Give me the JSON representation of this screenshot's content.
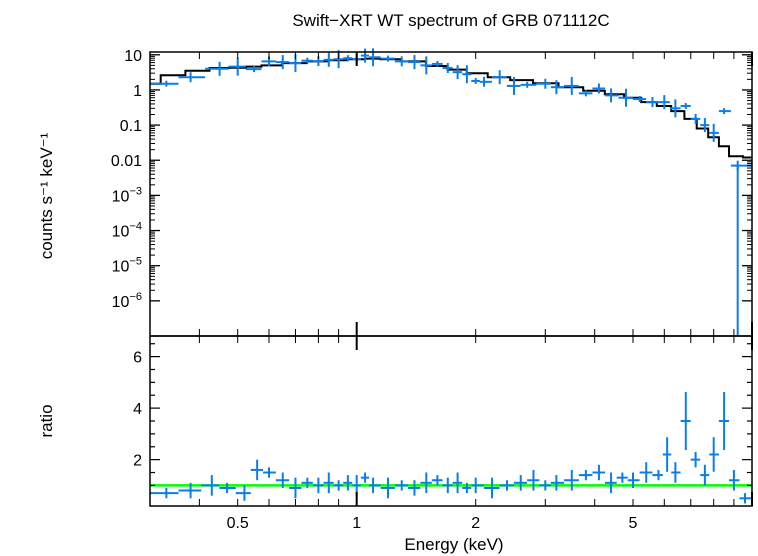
{
  "chart_data": [
    {
      "type": "scatter",
      "title": "Swift−XRT WT spectrum of GRB 071112C",
      "xlabel": "",
      "ylabel": "counts s⁻¹ keV⁻¹",
      "xscale": "log",
      "yscale": "log",
      "xlim": [
        0.3,
        10
      ],
      "ylim": [
        1e-07,
        12
      ],
      "y_ticks": [
        {
          "value": 10,
          "label": "10"
        },
        {
          "value": 1,
          "label": "1"
        },
        {
          "value": 0.1,
          "label": "0.1"
        },
        {
          "value": 0.01,
          "label": "0.01"
        },
        {
          "value": 0.001,
          "base": "10",
          "exp": "−3"
        },
        {
          "value": 0.0001,
          "base": "10",
          "exp": "−4"
        },
        {
          "value": 1e-05,
          "base": "10",
          "exp": "−5"
        },
        {
          "value": 1e-06,
          "base": "10",
          "exp": "−6"
        }
      ],
      "series": [
        {
          "kind": "data",
          "color": "#0a7ee8",
          "points": [
            [
              0.33,
              1.5
            ],
            [
              0.38,
              2.3
            ],
            [
              0.45,
              4.0
            ],
            [
              0.5,
              4.6
            ],
            [
              0.55,
              3.9
            ],
            [
              0.6,
              6.5
            ],
            [
              0.65,
              6.2
            ],
            [
              0.7,
              5.8
            ],
            [
              0.75,
              6.8
            ],
            [
              0.8,
              6.6
            ],
            [
              0.85,
              7.2
            ],
            [
              0.9,
              7.5
            ],
            [
              0.95,
              8.0
            ],
            [
              1.0,
              7.5
            ],
            [
              1.05,
              9.5
            ],
            [
              1.1,
              8.5
            ],
            [
              1.2,
              7.8
            ],
            [
              1.3,
              6.5
            ],
            [
              1.4,
              6.2
            ],
            [
              1.5,
              5.0
            ],
            [
              1.6,
              5.5
            ],
            [
              1.7,
              4.2
            ],
            [
              1.8,
              3.2
            ],
            [
              1.9,
              2.8
            ],
            [
              2.0,
              1.8
            ],
            [
              2.1,
              1.7
            ],
            [
              2.3,
              2.3
            ],
            [
              2.5,
              1.3
            ],
            [
              2.7,
              1.4
            ],
            [
              3.0,
              1.5
            ],
            [
              3.2,
              1.2
            ],
            [
              3.5,
              1.3
            ],
            [
              3.8,
              0.8
            ],
            [
              4.1,
              1.1
            ],
            [
              4.4,
              0.7
            ],
            [
              4.8,
              0.6
            ],
            [
              5.2,
              0.55
            ],
            [
              5.6,
              0.45
            ],
            [
              6.0,
              0.45
            ],
            [
              6.4,
              0.3
            ],
            [
              6.8,
              0.35
            ],
            [
              7.2,
              0.15
            ],
            [
              7.6,
              0.1
            ],
            [
              8.0,
              0.06
            ],
            [
              8.5,
              0.25
            ],
            [
              9.2,
              0.007
            ]
          ]
        },
        {
          "kind": "model",
          "color": "#000000",
          "points": [
            [
              0.3,
              1.5
            ],
            [
              0.34,
              2.6
            ],
            [
              0.4,
              3.5
            ],
            [
              0.45,
              4.2
            ],
            [
              0.5,
              4.3
            ],
            [
              0.55,
              4.6
            ],
            [
              0.6,
              5.0
            ],
            [
              0.7,
              5.8
            ],
            [
              0.8,
              6.5
            ],
            [
              0.9,
              7.0
            ],
            [
              1.0,
              7.5
            ],
            [
              1.1,
              7.8
            ],
            [
              1.2,
              7.5
            ],
            [
              1.4,
              6.5
            ],
            [
              1.6,
              4.8
            ],
            [
              1.8,
              3.8
            ],
            [
              2.0,
              3.0
            ],
            [
              2.3,
              2.3
            ],
            [
              2.6,
              1.9
            ],
            [
              3.0,
              1.55
            ],
            [
              3.5,
              1.2
            ],
            [
              4.0,
              0.95
            ],
            [
              4.5,
              0.75
            ],
            [
              5.0,
              0.6
            ],
            [
              5.5,
              0.45
            ],
            [
              6.0,
              0.35
            ],
            [
              6.5,
              0.25
            ],
            [
              7.0,
              0.15
            ],
            [
              7.5,
              0.08
            ],
            [
              8.0,
              0.045
            ],
            [
              8.5,
              0.025
            ],
            [
              9.0,
              0.013
            ],
            [
              10.0,
              0.012
            ]
          ]
        }
      ]
    },
    {
      "type": "scatter",
      "title": "",
      "xlabel": "Energy (keV)",
      "ylabel": "ratio",
      "xscale": "log",
      "xlim": [
        0.3,
        10
      ],
      "ylim": [
        0.2,
        6.8
      ],
      "x_ticks": [
        {
          "value": 0.5,
          "label": "0.5"
        },
        {
          "value": 1,
          "label": "1"
        },
        {
          "value": 2,
          "label": "2"
        },
        {
          "value": 5,
          "label": "5"
        }
      ],
      "y_ticks": [
        {
          "value": 2,
          "label": "2"
        },
        {
          "value": 4,
          "label": "4"
        },
        {
          "value": 6,
          "label": "6"
        }
      ],
      "reference_line": {
        "value": 1,
        "color": "#00ff00"
      },
      "series": [
        {
          "kind": "ratio",
          "color": "#0a7ee8",
          "points": [
            [
              0.33,
              0.7
            ],
            [
              0.38,
              0.8
            ],
            [
              0.43,
              1.0
            ],
            [
              0.47,
              0.9
            ],
            [
              0.52,
              0.7
            ],
            [
              0.56,
              1.6
            ],
            [
              0.6,
              1.5
            ],
            [
              0.65,
              1.2
            ],
            [
              0.7,
              0.9
            ],
            [
              0.75,
              1.1
            ],
            [
              0.8,
              1.0
            ],
            [
              0.85,
              1.1
            ],
            [
              0.9,
              1.0
            ],
            [
              0.95,
              1.1
            ],
            [
              1.0,
              1.0
            ],
            [
              1.05,
              1.3
            ],
            [
              1.1,
              1.0
            ],
            [
              1.2,
              0.9
            ],
            [
              1.3,
              1.0
            ],
            [
              1.4,
              0.9
            ],
            [
              1.5,
              1.1
            ],
            [
              1.6,
              1.2
            ],
            [
              1.7,
              1.0
            ],
            [
              1.8,
              1.1
            ],
            [
              1.9,
              0.9
            ],
            [
              2.0,
              1.0
            ],
            [
              2.2,
              0.9
            ],
            [
              2.4,
              1.0
            ],
            [
              2.6,
              1.1
            ],
            [
              2.8,
              1.2
            ],
            [
              3.0,
              1.0
            ],
            [
              3.2,
              1.1
            ],
            [
              3.5,
              1.2
            ],
            [
              3.8,
              1.4
            ],
            [
              4.1,
              1.5
            ],
            [
              4.4,
              1.1
            ],
            [
              4.7,
              1.3
            ],
            [
              5.0,
              1.2
            ],
            [
              5.4,
              1.5
            ],
            [
              5.8,
              1.4
            ],
            [
              6.1,
              2.2
            ],
            [
              6.4,
              1.5
            ],
            [
              6.8,
              3.5
            ],
            [
              7.2,
              2.0
            ],
            [
              7.6,
              1.4
            ],
            [
              8.0,
              2.2
            ],
            [
              8.5,
              3.5
            ],
            [
              9.0,
              1.2
            ],
            [
              9.6,
              0.5
            ]
          ]
        }
      ]
    }
  ]
}
